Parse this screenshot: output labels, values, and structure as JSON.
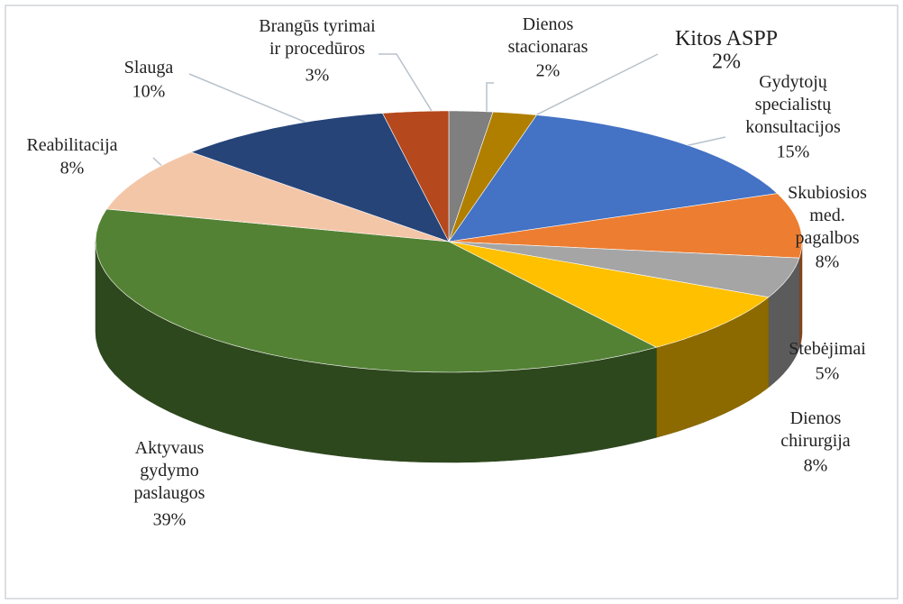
{
  "chart_data": {
    "type": "pie",
    "categories": [
      "Dienos stacionaras",
      "Kitos ASPP",
      "Gydytojų specialistų konsultacijos",
      "Skubiosios med. pagalbos",
      "Stebėjimai",
      "Dienos chirurgija",
      "Aktyvaus gydymo paslaugos",
      "Reabilitacija",
      "Slauga",
      "Brangūs tyrimai ir procedūros"
    ],
    "values": [
      2,
      2,
      15,
      8,
      5,
      8,
      39,
      8,
      10,
      3
    ],
    "value_labels": [
      "2%",
      "2%",
      "15%",
      "8%",
      "5%",
      "8%",
      "39%",
      "8%",
      "10%",
      "3%"
    ],
    "colors": [
      "#7f7f7f",
      "#b07f00",
      "#4472c4",
      "#ed7d31",
      "#a5a5a5",
      "#ffc000",
      "#548235",
      "#f4c6a8",
      "#264478",
      "#b5481d"
    ]
  }
}
